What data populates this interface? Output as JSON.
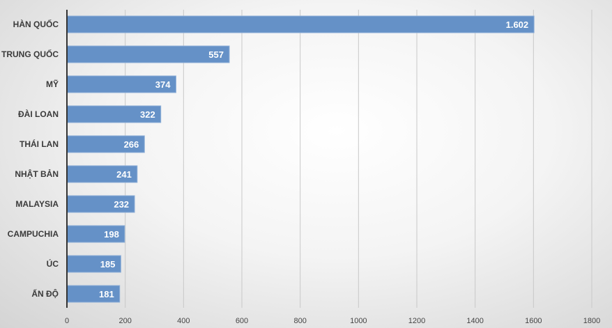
{
  "chart_data": {
    "type": "bar",
    "orientation": "horizontal",
    "title": "",
    "xlabel": "",
    "ylabel": "",
    "categories": [
      "HÀN QUỐC",
      "TRUNG QUỐC",
      "MỸ",
      "ĐÀI LOAN",
      "THÁI LAN",
      "NHẬT BẢN",
      "MALAYSIA",
      "CAMPUCHIA",
      "ÚC",
      "ẤN ĐỘ"
    ],
    "values": [
      1602,
      557,
      374,
      322,
      266,
      241,
      232,
      198,
      185,
      181
    ],
    "data_labels": [
      "1.602",
      "557",
      "374",
      "322",
      "266",
      "241",
      "232",
      "198",
      "185",
      "181"
    ],
    "xlim": [
      0,
      1800
    ],
    "xticks": [
      0,
      200,
      400,
      600,
      800,
      1000,
      1200,
      1400,
      1600,
      1800
    ],
    "grid": true,
    "bar_color": "#6591c7",
    "legend": "none"
  }
}
